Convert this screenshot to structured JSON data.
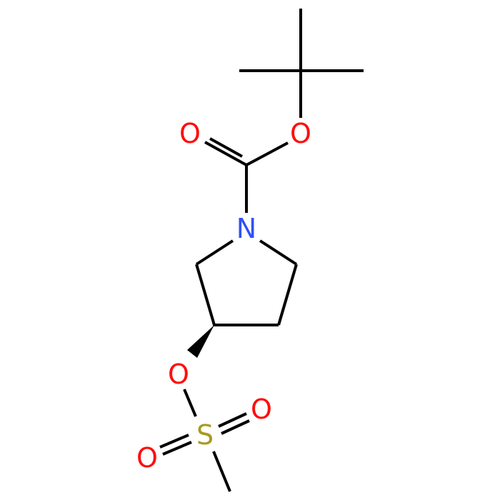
{
  "atoms": [
    {
      "label": "O"
    },
    {
      "label": "O"
    },
    {
      "label": "N"
    },
    {
      "label": "O"
    },
    {
      "label": "S"
    },
    {
      "label": "O"
    },
    {
      "label": "O"
    }
  ]
}
